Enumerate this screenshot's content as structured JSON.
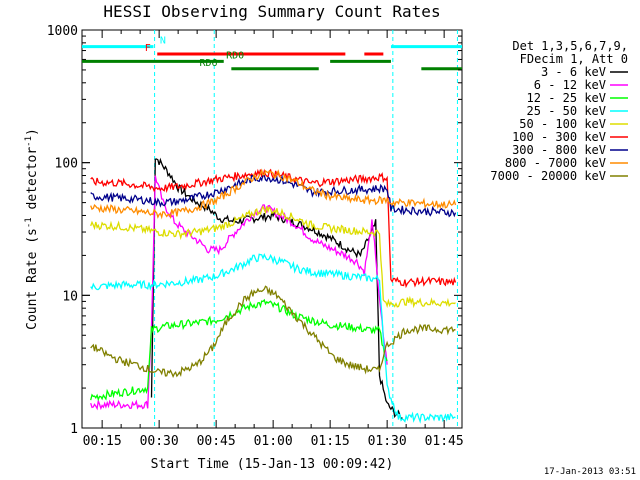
{
  "chart_data": {
    "type": "line",
    "title": "HESSI Observing Summary Count Rates",
    "xlabel": "Start Time (15-Jan-13 00:09:42)",
    "ylabel_main": "Count Rate (s",
    "ylabel_exp": "-1",
    "ylabel_mid": " detector",
    "ylabel_exp2": "-1",
    "ylabel_close": ")",
    "footer": "17-Jan-2013 03:51",
    "y_scale": "log",
    "ylim": [
      1,
      1000
    ],
    "xlim_minutes": [
      9.7,
      109.7
    ],
    "x_ticks": [
      {
        "label": "00:15",
        "min": 15
      },
      {
        "label": "00:30",
        "min": 30
      },
      {
        "label": "00:45",
        "min": 45
      },
      {
        "label": "01:00",
        "min": 60
      },
      {
        "label": "01:15",
        "min": 75
      },
      {
        "label": "01:30",
        "min": 90
      },
      {
        "label": "01:45",
        "min": 105
      }
    ],
    "y_ticks": [
      {
        "label": "1",
        "value": 1
      },
      {
        "label": "10",
        "value": 10
      },
      {
        "label": "100",
        "value": 100
      },
      {
        "label": "1000",
        "value": 1000
      }
    ],
    "legend_header": [
      "Det 1,3,5,6,7,9,",
      "FDecim 1, Att 0"
    ],
    "legend_position": "right",
    "series": [
      {
        "name": "3 - 6 keV",
        "color": "#000000",
        "points": [
          [
            28,
            1.7
          ],
          [
            29,
            110
          ],
          [
            31,
            95
          ],
          [
            33,
            80
          ],
          [
            35,
            65
          ],
          [
            38,
            55
          ],
          [
            40,
            50
          ],
          [
            43,
            45
          ],
          [
            46,
            38
          ],
          [
            50,
            36
          ],
          [
            55,
            38
          ],
          [
            60,
            40
          ],
          [
            65,
            36
          ],
          [
            70,
            32
          ],
          [
            74,
            28
          ],
          [
            77,
            25
          ],
          [
            80,
            22
          ],
          [
            83,
            20
          ],
          [
            86,
            30
          ],
          [
            87,
            35
          ],
          [
            88,
            2.5
          ],
          [
            90,
            1.5
          ],
          [
            92,
            1.3
          ],
          [
            94,
            1.2
          ]
        ]
      },
      {
        "name": "6 - 12 keV",
        "color": "#ff00ff",
        "points": [
          [
            12,
            1.5
          ],
          [
            27,
            1.5
          ],
          [
            28,
            6
          ],
          [
            29,
            80
          ],
          [
            31,
            50
          ],
          [
            34,
            36
          ],
          [
            37,
            30
          ],
          [
            40,
            26
          ],
          [
            43,
            22
          ],
          [
            46,
            22
          ],
          [
            50,
            30
          ],
          [
            55,
            42
          ],
          [
            58,
            46
          ],
          [
            62,
            40
          ],
          [
            66,
            34
          ],
          [
            70,
            27
          ],
          [
            73,
            24
          ],
          [
            76,
            22
          ],
          [
            79,
            20
          ],
          [
            82,
            18
          ],
          [
            84,
            15
          ],
          [
            86,
            35
          ],
          [
            87,
            20
          ],
          [
            88,
            9
          ],
          [
            89,
            5
          ],
          [
            90,
            3
          ]
        ]
      },
      {
        "name": "12 - 25 keV",
        "color": "#00ff00",
        "points": [
          [
            12,
            1.7
          ],
          [
            27,
            2
          ],
          [
            28,
            5.5
          ],
          [
            31,
            5.8
          ],
          [
            35,
            6
          ],
          [
            40,
            6.2
          ],
          [
            45,
            6.5
          ],
          [
            50,
            7.5
          ],
          [
            55,
            8.5
          ],
          [
            58,
            8.8
          ],
          [
            62,
            8
          ],
          [
            66,
            7
          ],
          [
            70,
            6.5
          ],
          [
            75,
            6
          ],
          [
            80,
            5.8
          ],
          [
            85,
            5.5
          ],
          [
            88,
            5.4
          ],
          [
            89,
            4
          ],
          [
            90,
            3.2
          ]
        ]
      },
      {
        "name": "25 - 50 keV",
        "color": "#00ffff",
        "points": [
          [
            12,
            11.5
          ],
          [
            20,
            12
          ],
          [
            27,
            12
          ],
          [
            28,
            12
          ],
          [
            35,
            12.5
          ],
          [
            40,
            13
          ],
          [
            45,
            14
          ],
          [
            50,
            16
          ],
          [
            55,
            19
          ],
          [
            58,
            19.5
          ],
          [
            62,
            18
          ],
          [
            66,
            16
          ],
          [
            70,
            15
          ],
          [
            75,
            14.5
          ],
          [
            80,
            14
          ],
          [
            85,
            13.5
          ],
          [
            88,
            13.2
          ],
          [
            89,
            5
          ],
          [
            90,
            2
          ],
          [
            93,
            1.2
          ],
          [
            100,
            1.2
          ],
          [
            108,
            1.2
          ]
        ]
      },
      {
        "name": "50 - 100 keV",
        "color": "#dddd00",
        "points": [
          [
            12,
            34
          ],
          [
            20,
            33
          ],
          [
            27,
            31
          ],
          [
            30,
            30
          ],
          [
            35,
            29
          ],
          [
            40,
            30
          ],
          [
            45,
            32
          ],
          [
            50,
            36
          ],
          [
            55,
            42
          ],
          [
            58,
            45
          ],
          [
            62,
            42
          ],
          [
            66,
            38
          ],
          [
            70,
            34
          ],
          [
            75,
            32
          ],
          [
            80,
            31
          ],
          [
            85,
            30
          ],
          [
            88,
            30
          ],
          [
            89,
            9
          ],
          [
            90,
            8.5
          ],
          [
            95,
            9
          ],
          [
            100,
            8.8
          ],
          [
            108,
            8.8
          ]
        ]
      },
      {
        "name": "100 - 300 keV",
        "color": "#ff0000",
        "points": [
          [
            12,
            72
          ],
          [
            20,
            70
          ],
          [
            27,
            66
          ],
          [
            30,
            64
          ],
          [
            35,
            66
          ],
          [
            40,
            70
          ],
          [
            45,
            75
          ],
          [
            50,
            79
          ],
          [
            55,
            83
          ],
          [
            58,
            84
          ],
          [
            62,
            80
          ],
          [
            66,
            75
          ],
          [
            70,
            70
          ],
          [
            75,
            72
          ],
          [
            80,
            74
          ],
          [
            85,
            76
          ],
          [
            88,
            78
          ],
          [
            90,
            77
          ],
          [
            91,
            13
          ],
          [
            95,
            12.5
          ],
          [
            100,
            12.8
          ],
          [
            108,
            12.5
          ]
        ]
      },
      {
        "name": "300 - 800 keV",
        "color": "#00008b",
        "points": [
          [
            12,
            56
          ],
          [
            20,
            54
          ],
          [
            27,
            52
          ],
          [
            30,
            50
          ],
          [
            35,
            51
          ],
          [
            40,
            55
          ],
          [
            45,
            60
          ],
          [
            50,
            68
          ],
          [
            55,
            76
          ],
          [
            58,
            78
          ],
          [
            62,
            74
          ],
          [
            66,
            68
          ],
          [
            70,
            60
          ],
          [
            75,
            61
          ],
          [
            80,
            62
          ],
          [
            85,
            63
          ],
          [
            88,
            64
          ],
          [
            90,
            64
          ],
          [
            91,
            45
          ],
          [
            95,
            44
          ],
          [
            100,
            43
          ],
          [
            108,
            42
          ]
        ]
      },
      {
        "name": "800 - 7000 keV",
        "color": "#ff8c00",
        "points": [
          [
            12,
            46
          ],
          [
            20,
            44
          ],
          [
            27,
            42
          ],
          [
            30,
            41
          ],
          [
            35,
            42
          ],
          [
            40,
            46
          ],
          [
            45,
            52
          ],
          [
            50,
            64
          ],
          [
            55,
            78
          ],
          [
            58,
            84
          ],
          [
            62,
            80
          ],
          [
            66,
            72
          ],
          [
            70,
            62
          ],
          [
            75,
            56
          ],
          [
            80,
            53
          ],
          [
            85,
            52
          ],
          [
            88,
            52
          ],
          [
            90,
            52
          ],
          [
            91,
            50
          ],
          [
            95,
            50
          ],
          [
            100,
            49
          ],
          [
            108,
            48
          ]
        ]
      },
      {
        "name": "7000 - 20000 keV",
        "color": "#808000",
        "points": [
          [
            12,
            4.2
          ],
          [
            16,
            3.6
          ],
          [
            20,
            3.2
          ],
          [
            24,
            3
          ],
          [
            27,
            2.8
          ],
          [
            30,
            2.6
          ],
          [
            35,
            2.6
          ],
          [
            40,
            3
          ],
          [
            44,
            4
          ],
          [
            48,
            6.5
          ],
          [
            52,
            9
          ],
          [
            55,
            10.5
          ],
          [
            58,
            11
          ],
          [
            61,
            10
          ],
          [
            64,
            8
          ],
          [
            68,
            6
          ],
          [
            72,
            4.5
          ],
          [
            76,
            3.4
          ],
          [
            80,
            3
          ],
          [
            84,
            2.8
          ],
          [
            88,
            2.7
          ],
          [
            89,
            3.6
          ],
          [
            90,
            4.2
          ],
          [
            95,
            5.5
          ],
          [
            100,
            5.6
          ],
          [
            108,
            5.5
          ]
        ]
      }
    ],
    "flag_bars": [
      {
        "label": "N",
        "color": "#00ffff",
        "segments": [
          [
            9.7,
            28.5
          ],
          [
            91,
            109.7
          ]
        ],
        "row_value": 750,
        "label_at": 31
      },
      {
        "label": "F",
        "color": "#ff0000",
        "segments": [
          [
            29.5,
            79
          ],
          [
            84,
            89
          ]
        ],
        "row_value": 660,
        "label_at": 27
      },
      {
        "label": "RD0",
        "color": "#008000",
        "segments": [
          [
            9.7,
            47
          ]
        ],
        "row_value": 580,
        "label_at": 50
      },
      {
        "label": "",
        "color": "#008000",
        "segments": [
          [
            75,
            91
          ]
        ],
        "row_value": 580,
        "label_at": 0
      },
      {
        "label": "RD6",
        "color": "#008000",
        "segments": [
          [
            49,
            72
          ],
          [
            99,
            109.7
          ]
        ],
        "row_value": 510,
        "label_at": 43
      }
    ],
    "vlines": [
      {
        "min": 28.8,
        "color": "#00ffff"
      },
      {
        "min": 44.5,
        "color": "#00ffff"
      },
      {
        "min": 91.5,
        "color": "#00ffff"
      },
      {
        "min": 108.5,
        "color": "#00ffff"
      }
    ],
    "grid": false
  }
}
